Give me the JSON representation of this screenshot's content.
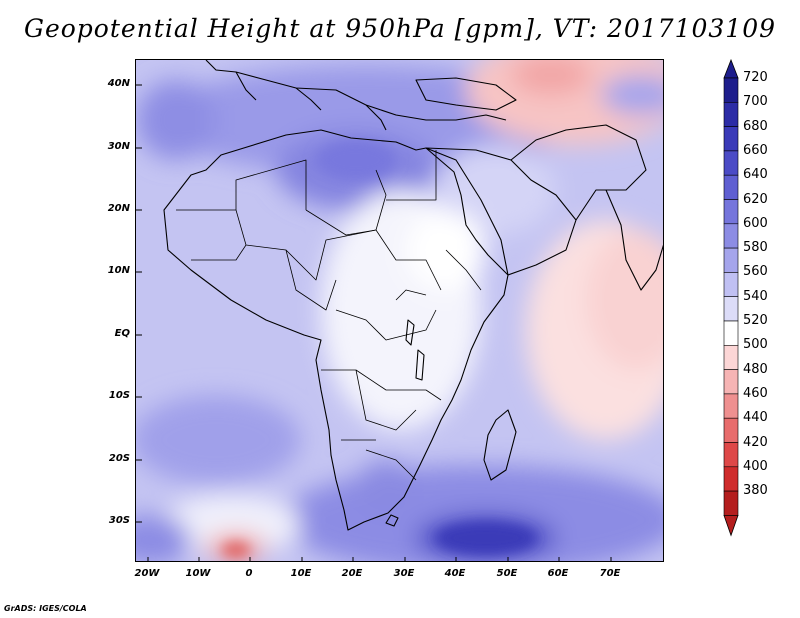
{
  "title": "Geopotential Height at 950hPa [gpm], VT: 2017103109",
  "footer": "GrADS: IGES/COLA",
  "map": {
    "lat_labels": [
      "40N",
      "30N",
      "20N",
      "10N",
      "EQ",
      "10S",
      "20S",
      "30S"
    ],
    "lon_labels": [
      "20W",
      "10W",
      "0",
      "10E",
      "20E",
      "30E",
      "40E",
      "50E",
      "60E",
      "70E"
    ]
  },
  "colorbar": {
    "levels": [
      "720",
      "700",
      "680",
      "660",
      "640",
      "620",
      "600",
      "580",
      "560",
      "540",
      "520",
      "500",
      "480",
      "460",
      "440",
      "420",
      "400",
      "380"
    ],
    "colors": [
      "#1e1e8c",
      "#2c2ca6",
      "#3a3ab8",
      "#4b4bc6",
      "#5f5fd2",
      "#7575dc",
      "#8c8ce4",
      "#a5a5ec",
      "#c0c0f3",
      "#dcdcf8",
      "#ffffff",
      "#fcd6d6",
      "#f6b4b4",
      "#ef9090",
      "#e86c6c",
      "#de4848",
      "#cf2c2c",
      "#b41e1e"
    ]
  }
}
